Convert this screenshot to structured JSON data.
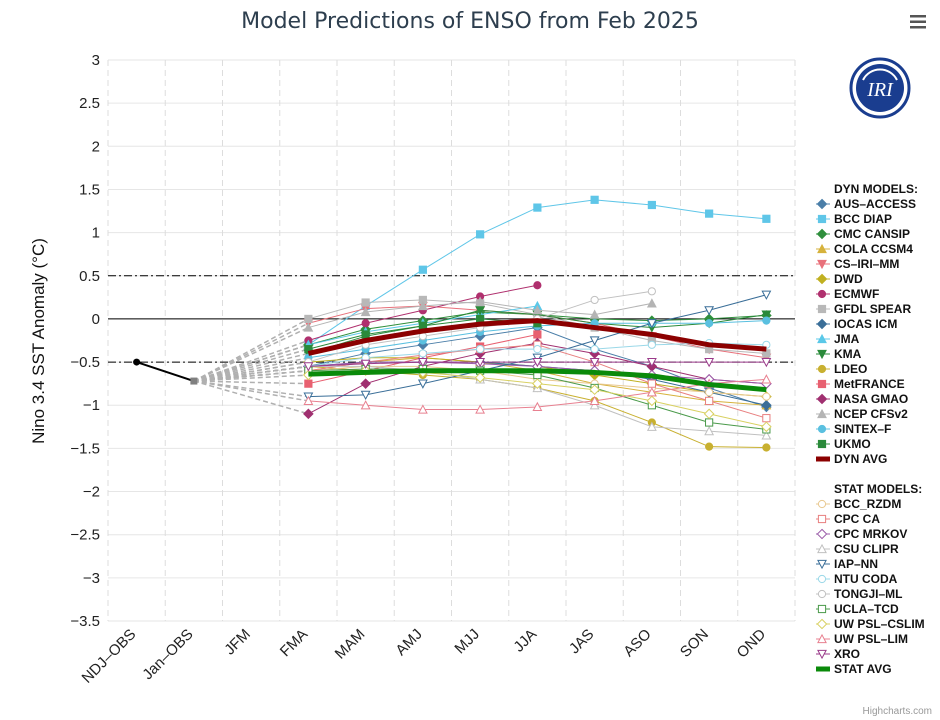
{
  "chart_data": {
    "type": "line",
    "title": "Model Predictions of ENSO from Feb 2025",
    "ylabel": "Nino 3.4 SST Anomaly (°C)",
    "xlabel": "",
    "ylim": [
      -3.5,
      3
    ],
    "yticks": [
      3,
      2.5,
      2,
      1.5,
      1,
      0.5,
      0,
      -0.5,
      -1,
      -1.5,
      -2,
      -2.5,
      -3,
      -3.5
    ],
    "ytick_labels": [
      "3",
      "2.5",
      "2",
      "1.5",
      "1",
      "0.5",
      "0",
      "−0.5",
      "−1",
      "−1.5",
      "−2",
      "−2.5",
      "−3",
      "−3.5"
    ],
    "categories": [
      "NDJ–OBS",
      "Jan–OBS",
      "JFM",
      "FMA",
      "MAM",
      "AMJ",
      "MJJ",
      "JJA",
      "JAS",
      "ASO",
      "SON",
      "OND"
    ],
    "reference_lines": [
      0.5,
      0,
      -0.5
    ],
    "observed": {
      "name": "OBS",
      "values": [
        -0.5,
        -0.72
      ],
      "color": "#000000"
    },
    "legend_position": "right",
    "legend_dyn_header": "DYN MODELS:",
    "legend_stat_header": "STAT MODELS:",
    "dyn_series": [
      {
        "name": "AUS–ACCESS",
        "color": "#4a7ea8",
        "marker": "diamond",
        "filled": true,
        "values": [
          -0.55,
          -0.4,
          -0.3,
          -0.2,
          -0.1,
          -0.35,
          -0.55,
          -0.8,
          -1.02
        ]
      },
      {
        "name": "BCC DIAP",
        "color": "#5fc6e8",
        "marker": "square",
        "filled": true,
        "values": [
          -0.3,
          0.15,
          0.57,
          0.98,
          1.29,
          1.38,
          1.32,
          1.22,
          1.16
        ]
      },
      {
        "name": "CMC CANSIP",
        "color": "#2f8f3c",
        "marker": "diamond",
        "filled": true,
        "values": [
          -0.3,
          -0.12,
          -0.02,
          0.08,
          0.05,
          0.0,
          -0.02,
          0.0,
          0.04
        ]
      },
      {
        "name": "COLA CCSM4",
        "color": "#d6b23c",
        "marker": "triangle",
        "filled": true,
        "values": [
          -0.6,
          -0.5,
          -0.45,
          -0.5,
          -0.6,
          -0.75,
          -0.85,
          -0.95,
          -1.0
        ]
      },
      {
        "name": "CS–IRI–MM",
        "color": "#e8707a",
        "marker": "triangle-down",
        "filled": true,
        "values": [
          -0.05,
          0.12,
          0.15,
          0.1,
          0.05,
          -0.05,
          -0.2,
          -0.35,
          -0.45
        ]
      },
      {
        "name": "DWD",
        "color": "#c0b020",
        "marker": "diamond",
        "filled": true,
        "values": [
          -0.5,
          -0.45,
          -0.45,
          -0.5,
          -0.55,
          -0.65,
          -0.75,
          -0.85,
          -0.9
        ]
      },
      {
        "name": "ECMWF",
        "color": "#b0306e",
        "marker": "circle",
        "filled": true,
        "values": [
          -0.25,
          -0.05,
          0.1,
          0.26,
          0.39
        ]
      },
      {
        "name": "GFDL SPEAR",
        "color": "#b8b8b8",
        "marker": "square",
        "filled": true,
        "values": [
          0.0,
          0.19,
          0.22,
          0.18,
          0.05,
          -0.1,
          -0.25,
          -0.35,
          -0.4
        ]
      },
      {
        "name": "IOCAS ICM",
        "color": "#3a6e98",
        "marker": "diamond",
        "filled": true,
        "values": [
          -0.55,
          -0.5,
          -0.5,
          -0.5,
          -0.55,
          -0.6,
          -0.7,
          -0.85,
          -1.0
        ]
      },
      {
        "name": "JMA",
        "color": "#5ac8e8",
        "marker": "triangle",
        "filled": true,
        "values": [
          -0.3,
          -0.15,
          -0.05,
          0.05,
          0.15
        ]
      },
      {
        "name": "KMA",
        "color": "#2a8a3a",
        "marker": "triangle-down",
        "filled": true,
        "values": [
          -0.4,
          -0.2,
          -0.08,
          0.1,
          0.05,
          -0.05,
          -0.1,
          -0.05,
          0.05
        ]
      },
      {
        "name": "LDEO",
        "color": "#c8b030",
        "marker": "circle",
        "filled": true,
        "values": [
          -0.55,
          -0.6,
          -0.65,
          -0.7,
          -0.8,
          -0.95,
          -1.2,
          -1.48,
          -1.49
        ]
      },
      {
        "name": "MetFRANCE",
        "color": "#e86070",
        "marker": "square",
        "filled": true,
        "values": [
          -0.75,
          -0.6,
          -0.45,
          -0.32,
          -0.18
        ]
      },
      {
        "name": "NASA GMAO",
        "color": "#a03070",
        "marker": "diamond",
        "filled": true,
        "values": [
          -1.1,
          -0.75,
          -0.55,
          -0.4,
          -0.28,
          -0.4,
          -0.55,
          -0.7,
          -0.75
        ]
      },
      {
        "name": "NCEP CFSv2",
        "color": "#b4b4b4",
        "marker": "triangle",
        "filled": true,
        "values": [
          -0.1,
          0.08,
          0.15,
          0.2,
          0.1,
          0.05,
          0.18
        ]
      },
      {
        "name": "SINTEX–F",
        "color": "#5ac0e0",
        "marker": "circle",
        "filled": true,
        "values": [
          -0.45,
          -0.35,
          -0.25,
          -0.15,
          -0.08,
          -0.05,
          -0.05,
          -0.05,
          -0.02
        ]
      },
      {
        "name": "UKMO",
        "color": "#2a8a3a",
        "marker": "square",
        "filled": true,
        "values": [
          -0.35,
          -0.18,
          -0.08,
          0.0,
          -0.05
        ]
      }
    ],
    "dyn_avg": {
      "name": "DYN AVG",
      "color": "#8b0000",
      "values": [
        -0.4,
        -0.25,
        -0.14,
        -0.06,
        -0.02,
        -0.1,
        -0.18,
        -0.3,
        -0.35
      ]
    },
    "stat_series": [
      {
        "name": "BCC_RZDM",
        "color": "#e8c890",
        "marker": "circle",
        "filled": false,
        "values": [
          -0.6,
          -0.55,
          -0.55,
          -0.6,
          -0.7,
          -0.75,
          -0.8,
          -0.85,
          -0.9
        ]
      },
      {
        "name": "CPC CA",
        "color": "#e88080",
        "marker": "square",
        "filled": false,
        "values": [
          -0.6,
          -0.5,
          -0.42,
          -0.35,
          -0.3,
          -0.5,
          -0.75,
          -0.95,
          -1.15
        ]
      },
      {
        "name": "CPC MRKOV",
        "color": "#9a5aa8",
        "marker": "diamond",
        "filled": false,
        "values": [
          -0.55,
          -0.5,
          -0.5,
          -0.52,
          -0.55,
          -0.6,
          -0.65,
          -0.7,
          -0.75
        ]
      },
      {
        "name": "CSU CLIPR",
        "color": "#c0c0c0",
        "marker": "triangle",
        "filled": false,
        "values": [
          -0.55,
          -0.55,
          -0.6,
          -0.7,
          -0.8,
          -1.0,
          -1.25,
          -1.3,
          -1.35
        ]
      },
      {
        "name": "IAP–NN",
        "color": "#3a6e98",
        "marker": "triangle-down",
        "filled": false,
        "values": [
          -0.9,
          -0.88,
          -0.75,
          -0.6,
          -0.45,
          -0.25,
          -0.05,
          0.1,
          0.28
        ]
      },
      {
        "name": "NTU CODA",
        "color": "#9ad8e8",
        "marker": "circle",
        "filled": false,
        "values": [
          -0.55,
          -0.45,
          -0.4,
          -0.35,
          -0.35,
          -0.35,
          -0.3,
          -0.28,
          -0.3
        ]
      },
      {
        "name": "TONGJI–ML",
        "color": "#c0c0c0",
        "marker": "circle",
        "filled": false,
        "values": [
          -0.5,
          -0.3,
          -0.2,
          -0.1,
          0.0,
          0.22,
          0.32
        ]
      },
      {
        "name": "UCLA–TCD",
        "color": "#4a9a4a",
        "marker": "square",
        "filled": false,
        "values": [
          -0.6,
          -0.58,
          -0.58,
          -0.6,
          -0.65,
          -0.8,
          -1.0,
          -1.2,
          -1.28
        ]
      },
      {
        "name": "UW PSL–CSLIM",
        "color": "#d8d060",
        "marker": "diamond",
        "filled": false,
        "values": [
          -0.65,
          -0.6,
          -0.62,
          -0.68,
          -0.75,
          -0.82,
          -0.95,
          -1.1,
          -1.25
        ]
      },
      {
        "name": "UW PSL–LIM",
        "color": "#e88090",
        "marker": "triangle",
        "filled": false,
        "values": [
          -0.95,
          -1.0,
          -1.05,
          -1.05,
          -1.02,
          -0.95,
          -0.85,
          -0.75,
          -0.7
        ]
      },
      {
        "name": "XRO",
        "color": "#9a3a8a",
        "marker": "triangle-down",
        "filled": false,
        "values": [
          -0.55,
          -0.52,
          -0.5,
          -0.5,
          -0.5,
          -0.5,
          -0.5,
          -0.5,
          -0.5
        ]
      }
    ],
    "stat_avg": {
      "name": "STAT AVG",
      "color": "#0a8a0a",
      "values": [
        -0.64,
        -0.62,
        -0.6,
        -0.6,
        -0.6,
        -0.62,
        -0.66,
        -0.76,
        -0.82
      ]
    },
    "logo_text": "IRI",
    "credit": "Highcharts.com"
  }
}
